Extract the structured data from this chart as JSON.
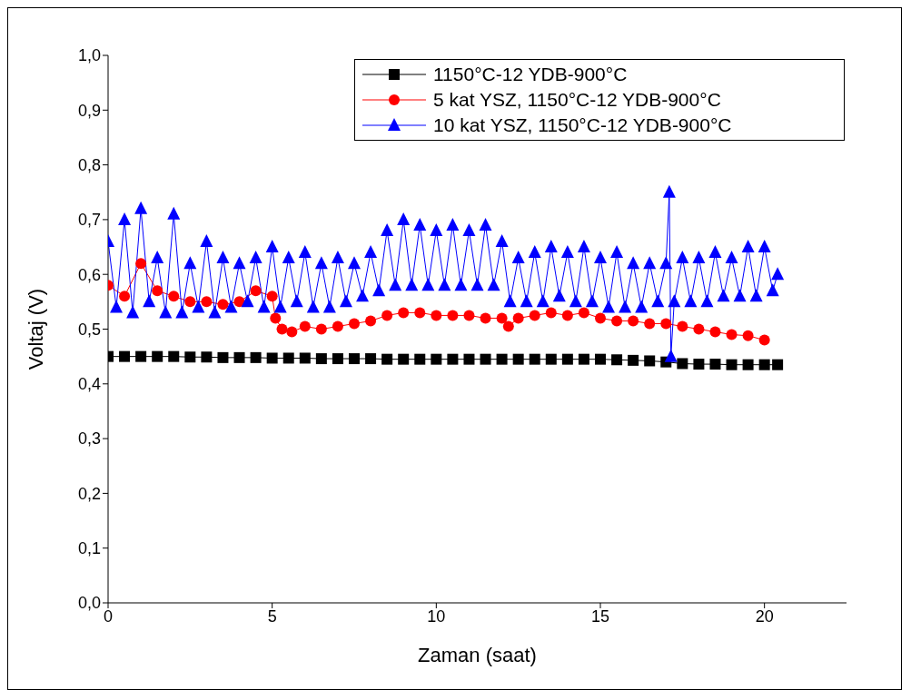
{
  "chart_data": {
    "type": "line",
    "xlabel": "Zaman (saat)",
    "ylabel": "Voltaj (V)",
    "xlim": [
      0,
      22.5
    ],
    "xticks": [
      0,
      5,
      10,
      15,
      20
    ],
    "ylim": [
      0,
      1
    ],
    "yticks": [
      {
        "value": 0,
        "label": "0,0"
      },
      {
        "value": 0.1,
        "label": "0,1"
      },
      {
        "value": 0.2,
        "label": "0,2"
      },
      {
        "value": 0.3,
        "label": "0,3"
      },
      {
        "value": 0.4,
        "label": "0,4"
      },
      {
        "value": 0.5,
        "label": "0,5"
      },
      {
        "value": 0.6,
        "label": "0,6"
      },
      {
        "value": 0.7,
        "label": "0,7"
      },
      {
        "value": 0.8,
        "label": "0,8"
      },
      {
        "value": 0.9,
        "label": "0,9"
      },
      {
        "value": 1,
        "label": "1,0"
      }
    ],
    "grid": false,
    "legend": "top right",
    "series": [
      {
        "name": "1150°C-12 YDB-900°C",
        "color": "#000000",
        "marker": "square",
        "x": [
          0,
          0.5,
          1,
          1.5,
          2,
          2.5,
          3,
          3.5,
          4,
          4.5,
          5,
          5.5,
          6,
          6.5,
          7,
          7.5,
          8,
          8.5,
          9,
          9.5,
          10,
          10.5,
          11,
          11.5,
          12,
          12.5,
          13,
          13.5,
          14,
          14.5,
          15,
          15.5,
          16,
          16.5,
          17,
          17.5,
          18,
          18.5,
          19,
          19.5,
          20,
          20.4
        ],
        "values": [
          0.45,
          0.45,
          0.45,
          0.45,
          0.45,
          0.449,
          0.449,
          0.448,
          0.448,
          0.448,
          0.447,
          0.447,
          0.447,
          0.446,
          0.446,
          0.446,
          0.446,
          0.445,
          0.445,
          0.445,
          0.445,
          0.445,
          0.445,
          0.445,
          0.445,
          0.445,
          0.445,
          0.445,
          0.445,
          0.445,
          0.445,
          0.444,
          0.443,
          0.442,
          0.44,
          0.437,
          0.436,
          0.436,
          0.435,
          0.435,
          0.435,
          0.435
        ]
      },
      {
        "name": "5 kat YSZ, 1150°C-12 YDB-900°C",
        "color": "#ff0000",
        "marker": "circle",
        "x": [
          0,
          0.5,
          1,
          1.5,
          2,
          2.5,
          3,
          3.5,
          4,
          4.5,
          5,
          5.1,
          5.3,
          5.6,
          6,
          6.5,
          7,
          7.5,
          8,
          8.5,
          9,
          9.5,
          10,
          10.5,
          11,
          11.5,
          12,
          12.2,
          12.5,
          13,
          13.5,
          14,
          14.5,
          15,
          15.5,
          16,
          16.5,
          17,
          17.5,
          18,
          18.5,
          19,
          19.5,
          20
        ],
        "values": [
          0.58,
          0.56,
          0.62,
          0.57,
          0.56,
          0.55,
          0.55,
          0.545,
          0.55,
          0.57,
          0.56,
          0.52,
          0.5,
          0.495,
          0.505,
          0.5,
          0.505,
          0.51,
          0.515,
          0.525,
          0.53,
          0.53,
          0.525,
          0.525,
          0.525,
          0.52,
          0.52,
          0.505,
          0.52,
          0.525,
          0.53,
          0.525,
          0.53,
          0.52,
          0.515,
          0.515,
          0.51,
          0.51,
          0.505,
          0.5,
          0.495,
          0.49,
          0.488,
          0.48
        ]
      },
      {
        "name": "10 kat YSZ, 1150°C-12 YDB-900°C",
        "color": "#0000ff",
        "marker": "triangle",
        "x": [
          0,
          0.25,
          0.5,
          0.75,
          1,
          1.25,
          1.5,
          1.75,
          2,
          2.25,
          2.5,
          2.75,
          3,
          3.25,
          3.5,
          3.75,
          4,
          4.25,
          4.5,
          4.75,
          5,
          5.25,
          5.5,
          5.75,
          6,
          6.25,
          6.5,
          6.75,
          7,
          7.25,
          7.5,
          7.75,
          8,
          8.25,
          8.5,
          8.75,
          9,
          9.25,
          9.5,
          9.75,
          10,
          10.25,
          10.5,
          10.75,
          11,
          11.25,
          11.5,
          11.75,
          12,
          12.25,
          12.5,
          12.75,
          13,
          13.25,
          13.5,
          13.75,
          14,
          14.25,
          14.5,
          14.75,
          15,
          15.25,
          15.5,
          15.75,
          16,
          16.25,
          16.5,
          16.75,
          17,
          17.1,
          17.15,
          17.25,
          17.5,
          17.75,
          18,
          18.25,
          18.5,
          18.75,
          19,
          19.25,
          19.5,
          19.75,
          20,
          20.25,
          20.4
        ],
        "values": [
          0.66,
          0.54,
          0.7,
          0.53,
          0.72,
          0.55,
          0.63,
          0.53,
          0.71,
          0.53,
          0.62,
          0.54,
          0.66,
          0.53,
          0.63,
          0.54,
          0.62,
          0.55,
          0.63,
          0.54,
          0.65,
          0.54,
          0.63,
          0.55,
          0.64,
          0.54,
          0.62,
          0.54,
          0.63,
          0.55,
          0.62,
          0.56,
          0.64,
          0.57,
          0.68,
          0.58,
          0.7,
          0.58,
          0.69,
          0.58,
          0.68,
          0.58,
          0.69,
          0.58,
          0.68,
          0.58,
          0.69,
          0.58,
          0.66,
          0.55,
          0.63,
          0.55,
          0.64,
          0.55,
          0.65,
          0.56,
          0.64,
          0.55,
          0.65,
          0.55,
          0.63,
          0.54,
          0.64,
          0.54,
          0.62,
          0.54,
          0.62,
          0.55,
          0.62,
          0.75,
          0.45,
          0.55,
          0.63,
          0.55,
          0.63,
          0.55,
          0.64,
          0.56,
          0.63,
          0.56,
          0.65,
          0.56,
          0.65,
          0.57,
          0.6
        ]
      }
    ]
  }
}
